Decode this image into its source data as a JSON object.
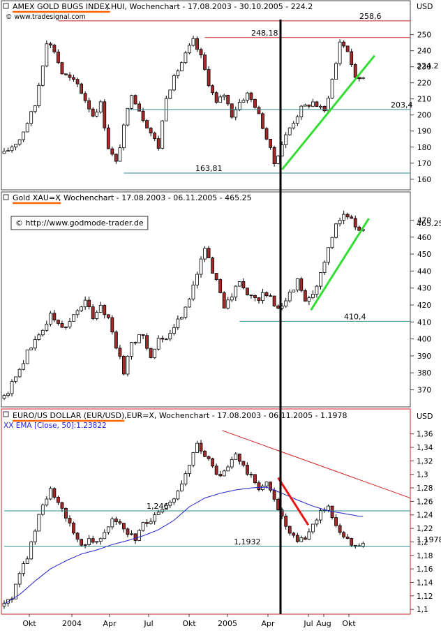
{
  "panels": [
    {
      "id": "hui",
      "header_symbol": "AMEX GOLD BUGS INDEX",
      "header_rest": " ,.HUI, Wochenchart - 17.08.2003 - 30.10.2005 - 224.2",
      "source_note": "© www.tradesignal.com",
      "unit": "USD",
      "last_price_label": "224.2"
    },
    {
      "id": "xau",
      "header_symbol": "Gold XAU=X",
      "header_rest": ", Wochenchart - 17.08.2003 - 06.11.2005 - 465.25",
      "source_note": "© http://www.godmode-trader.de",
      "last_price_label": "465.25"
    },
    {
      "id": "eur",
      "header_symbol": "EURO/US DOLLAR (EUR/USD)",
      "header_rest": " ,EUR=X, Wochenchart - 17.08.2003 - 06.11.2005 - 1.1978",
      "indicator_label": "XX EMA [Close, 50]:1.23822",
      "unit": "USD",
      "last_price_label": "1.1978"
    }
  ],
  "x_axis_labels": [
    "Okt",
    "2004",
    "Apr",
    "Jul",
    "Okt",
    "2005",
    "Apr",
    "Jul",
    "Aug",
    "Okt"
  ],
  "colors": {
    "up_candle": "#ffffff",
    "down_candle": "#a52a2a",
    "support_line": "#2e8b8b",
    "resistance_line": "#cc2222",
    "trend_up": "#33dd33",
    "trend_down": "#ee1111",
    "ema": "#2222cc",
    "header_underline": "#ff6600"
  },
  "chart_data": [
    {
      "type": "candlestick",
      "title": "AMEX GOLD BUGS INDEX ,.HUI, Wochenchart - 17.08.2003 - 30.10.2005 - 224.2",
      "ylabel": "USD",
      "y_ticks": [
        160,
        170,
        180,
        190,
        200,
        210,
        220,
        230,
        240,
        250
      ],
      "ylim": [
        156,
        262
      ],
      "last_value": 224.2,
      "levels": [
        {
          "value": 258.6,
          "label": "258,6"
        },
        {
          "value": 248.18,
          "label": "248,18"
        },
        {
          "value": 203.4,
          "label": "203,4"
        },
        {
          "value": 163.81,
          "label": "163,81"
        }
      ],
      "close_path": [
        [
          0,
          176
        ],
        [
          4,
          185
        ],
        [
          8,
          206
        ],
        [
          10,
          232
        ],
        [
          11,
          246
        ],
        [
          13,
          240
        ],
        [
          15,
          226
        ],
        [
          19,
          219
        ],
        [
          23,
          200
        ],
        [
          25,
          207
        ],
        [
          27,
          180
        ],
        [
          29,
          170
        ],
        [
          31,
          192
        ],
        [
          33,
          214
        ],
        [
          36,
          198
        ],
        [
          40,
          180
        ],
        [
          42,
          212
        ],
        [
          45,
          228
        ],
        [
          48,
          242
        ],
        [
          49,
          246
        ],
        [
          51,
          236
        ],
        [
          53,
          220
        ],
        [
          55,
          207
        ],
        [
          57,
          213
        ],
        [
          59,
          200
        ],
        [
          61,
          208
        ],
        [
          63,
          213
        ],
        [
          65,
          206
        ],
        [
          67,
          193
        ],
        [
          69,
          178
        ],
        [
          70,
          170
        ],
        [
          72,
          182
        ],
        [
          74,
          192
        ],
        [
          77,
          204
        ],
        [
          80,
          208
        ],
        [
          83,
          202
        ],
        [
          86,
          232
        ],
        [
          87,
          246
        ],
        [
          89,
          240
        ],
        [
          90,
          232
        ],
        [
          91,
          222
        ],
        [
          93,
          224
        ]
      ]
    },
    {
      "type": "candlestick",
      "title": "Gold XAU=X, Wochenchart - 17.08.2003 - 06.11.2005 - 465.25",
      "y_ticks": [
        370,
        380,
        390,
        400,
        410,
        420,
        430,
        440,
        450,
        460,
        470
      ],
      "ylim": [
        362,
        478
      ],
      "last_value": 465.25,
      "levels": [
        {
          "value": 410.4,
          "label": "410,4"
        }
      ],
      "close_path": [
        [
          0,
          365
        ],
        [
          3,
          378
        ],
        [
          6,
          392
        ],
        [
          9,
          402
        ],
        [
          12,
          414
        ],
        [
          15,
          406
        ],
        [
          18,
          414
        ],
        [
          21,
          422
        ],
        [
          23,
          413
        ],
        [
          25,
          420
        ],
        [
          27,
          412
        ],
        [
          29,
          396
        ],
        [
          31,
          380
        ],
        [
          33,
          398
        ],
        [
          36,
          402
        ],
        [
          38,
          390
        ],
        [
          40,
          400
        ],
        [
          42,
          398
        ],
        [
          45,
          410
        ],
        [
          48,
          424
        ],
        [
          50,
          440
        ],
        [
          52,
          454
        ],
        [
          54,
          438
        ],
        [
          56,
          428
        ],
        [
          57,
          420
        ],
        [
          59,
          425
        ],
        [
          61,
          434
        ],
        [
          63,
          426
        ],
        [
          65,
          423
        ],
        [
          67,
          426
        ],
        [
          69,
          424
        ],
        [
          70,
          418
        ],
        [
          72,
          421
        ],
        [
          74,
          427
        ],
        [
          76,
          434
        ],
        [
          78,
          424
        ],
        [
          80,
          426
        ],
        [
          82,
          438
        ],
        [
          84,
          452
        ],
        [
          86,
          468
        ],
        [
          88,
          473
        ],
        [
          90,
          470
        ],
        [
          91,
          466
        ],
        [
          92,
          465
        ]
      ]
    },
    {
      "type": "candlestick",
      "title": "EURO/US DOLLAR (EUR/USD) ,EUR=X, Wochenchart - 17.08.2003 - 06.11.2005 - 1.1978",
      "ylabel": "USD",
      "y_ticks": [
        1.1,
        1.12,
        1.14,
        1.16,
        1.18,
        1.2,
        1.22,
        1.24,
        1.26,
        1.28,
        1.3,
        1.32,
        1.34,
        1.36
      ],
      "ylim": [
        1.095,
        1.37
      ],
      "last_value": 1.1978,
      "levels": [
        {
          "value": 1.246,
          "label": "1,246"
        },
        {
          "value": 1.1932,
          "label": "1,1932"
        }
      ],
      "ema_label": "XX EMA [Close, 50]:1.23822",
      "close_path": [
        [
          0,
          1.105
        ],
        [
          2,
          1.118
        ],
        [
          4,
          1.155
        ],
        [
          6,
          1.175
        ],
        [
          8,
          1.22
        ],
        [
          10,
          1.255
        ],
        [
          12,
          1.275
        ],
        [
          14,
          1.255
        ],
        [
          16,
          1.235
        ],
        [
          18,
          1.215
        ],
        [
          20,
          1.195
        ],
        [
          22,
          1.205
        ],
        [
          24,
          1.2
        ],
        [
          26,
          1.218
        ],
        [
          28,
          1.235
        ],
        [
          30,
          1.225
        ],
        [
          32,
          1.21
        ],
        [
          34,
          1.205
        ],
        [
          36,
          1.225
        ],
        [
          38,
          1.235
        ],
        [
          40,
          1.24
        ],
        [
          42,
          1.25
        ],
        [
          44,
          1.265
        ],
        [
          46,
          1.285
        ],
        [
          48,
          1.31
        ],
        [
          50,
          1.345
        ],
        [
          52,
          1.33
        ],
        [
          54,
          1.31
        ],
        [
          56,
          1.295
        ],
        [
          58,
          1.31
        ],
        [
          60,
          1.33
        ],
        [
          62,
          1.31
        ],
        [
          64,
          1.295
        ],
        [
          66,
          1.28
        ],
        [
          68,
          1.285
        ],
        [
          70,
          1.265
        ],
        [
          72,
          1.235
        ],
        [
          74,
          1.21
        ],
        [
          76,
          1.2
        ],
        [
          78,
          1.205
        ],
        [
          80,
          1.225
        ],
        [
          82,
          1.245
        ],
        [
          84,
          1.25
        ],
        [
          86,
          1.225
        ],
        [
          88,
          1.205
        ],
        [
          90,
          1.198
        ],
        [
          92,
          1.198
        ]
      ],
      "ema_path": [
        [
          0,
          1.108
        ],
        [
          4,
          1.122
        ],
        [
          8,
          1.142
        ],
        [
          12,
          1.16
        ],
        [
          16,
          1.172
        ],
        [
          20,
          1.182
        ],
        [
          24,
          1.188
        ],
        [
          28,
          1.196
        ],
        [
          32,
          1.202
        ],
        [
          36,
          1.209
        ],
        [
          40,
          1.218
        ],
        [
          44,
          1.232
        ],
        [
          48,
          1.252
        ],
        [
          52,
          1.265
        ],
        [
          56,
          1.272
        ],
        [
          60,
          1.277
        ],
        [
          64,
          1.28
        ],
        [
          68,
          1.281
        ],
        [
          72,
          1.272
        ],
        [
          76,
          1.262
        ],
        [
          80,
          1.253
        ],
        [
          84,
          1.246
        ],
        [
          88,
          1.242
        ],
        [
          92,
          1.238
        ]
      ]
    }
  ]
}
